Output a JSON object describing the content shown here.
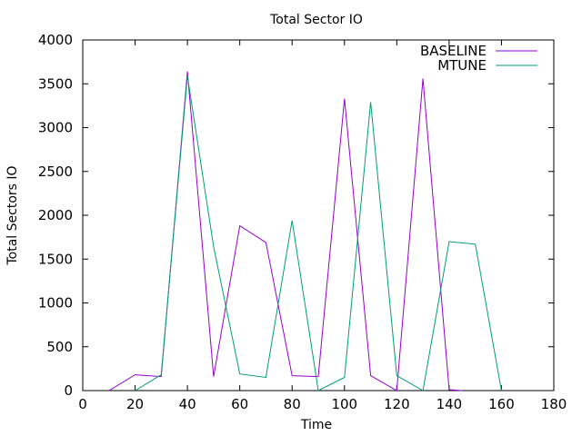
{
  "chart_data": {
    "type": "line",
    "title": "Total Sector IO",
    "xlabel": "Time",
    "ylabel": "Total Sectors IO",
    "xlim": [
      0,
      180
    ],
    "ylim": [
      0,
      4000
    ],
    "xticks": [
      0,
      20,
      40,
      60,
      80,
      100,
      120,
      140,
      160,
      180
    ],
    "yticks": [
      0,
      500,
      1000,
      1500,
      2000,
      2500,
      3000,
      3500,
      4000
    ],
    "grid": false,
    "legend": "top-right",
    "series": [
      {
        "name": "BASELINE",
        "color": "#9400d3",
        "x": [
          10,
          20,
          30,
          40,
          50,
          60,
          70,
          80,
          90,
          100,
          110,
          120,
          130,
          140,
          145
        ],
        "y": [
          0,
          180,
          160,
          3640,
          160,
          1880,
          1690,
          170,
          160,
          3330,
          170,
          0,
          3560,
          10,
          0
        ]
      },
      {
        "name": "MTUNE",
        "color": "#009e73",
        "x": [
          20,
          30,
          40,
          50,
          60,
          70,
          80,
          90,
          100,
          110,
          120,
          130,
          140,
          150,
          160
        ],
        "y": [
          0,
          180,
          3590,
          1640,
          190,
          150,
          1940,
          0,
          150,
          3290,
          170,
          0,
          1700,
          1670,
          0
        ]
      }
    ]
  }
}
